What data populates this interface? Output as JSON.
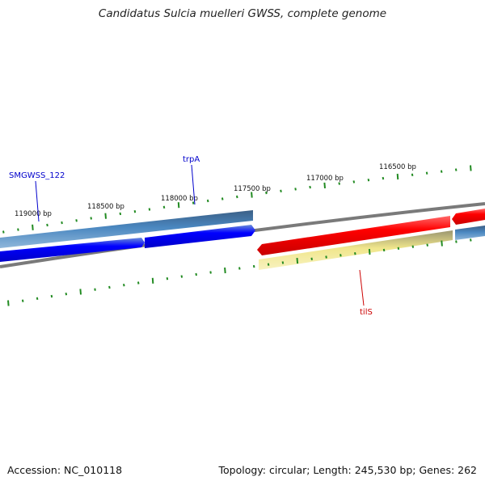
{
  "title": "Candidatus Sulcia muelleri GWSS, complete genome",
  "footer": {
    "accession": "Accession: NC_010118",
    "summary": "Topology: circular; Length: 245,530 bp; Genes: 262"
  },
  "ticks": [
    {
      "label": "119000 bp"
    },
    {
      "label": "118500 bp"
    },
    {
      "label": "118000 bp"
    },
    {
      "label": "117500 bp"
    },
    {
      "label": "117000 bp"
    },
    {
      "label": "116500 bp"
    }
  ],
  "genes": [
    {
      "name": "SMGWSS_122",
      "color": "#0000cc"
    },
    {
      "name": "trpA",
      "color": "#0000cc"
    },
    {
      "name": "tilS",
      "color": "#cc0000"
    }
  ],
  "colors": {
    "forward_cds": "#0000ff",
    "forward_gene": "#4682b4",
    "reverse_cds": "#ff0000",
    "reverse_gene": "#f0e68c",
    "ticks": "#228b22",
    "backbone": "#808080"
  }
}
